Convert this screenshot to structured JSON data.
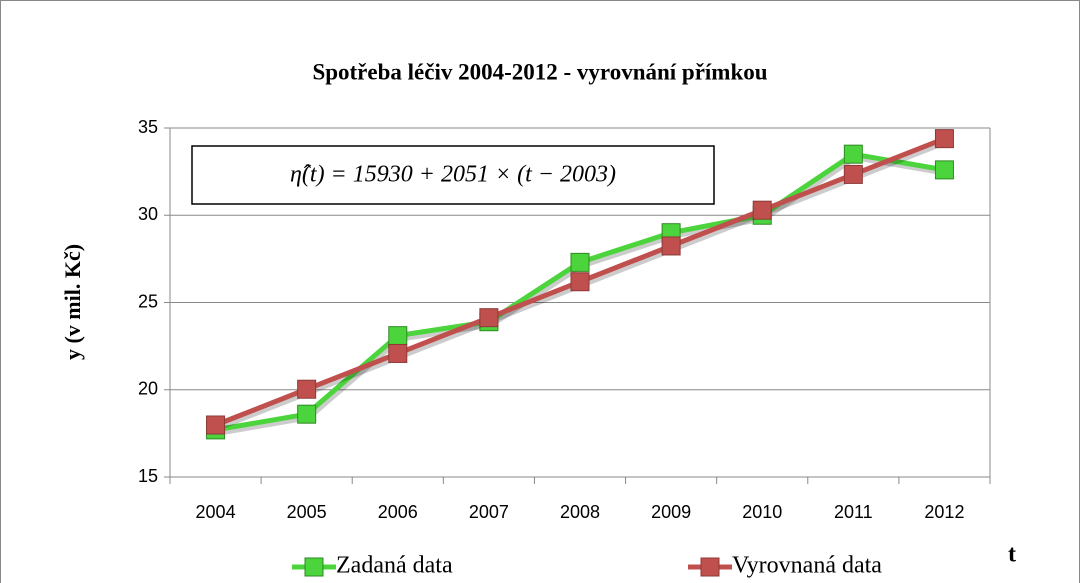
{
  "chart_data": {
    "type": "line",
    "title": "Spotřeba léčiv 2004-2012 - vyrovnání přímkou",
    "x_label": "t",
    "y_label": "y (v mil. Kč)",
    "annotation": "η̂(t) = 15930 + 2051 × (t − 2003)",
    "categories": [
      "2004",
      "2005",
      "2006",
      "2007",
      "2008",
      "2009",
      "2010",
      "2011",
      "2012"
    ],
    "series": [
      {
        "name": "Zadaná data",
        "color": "#4cd43c",
        "values": [
          17.7,
          18.6,
          23.1,
          23.9,
          27.3,
          29.0,
          30.0,
          33.5,
          32.6
        ]
      },
      {
        "name": "Vyrovnaná data",
        "color": "#c0504d",
        "values": [
          17.98,
          20.03,
          22.08,
          24.13,
          26.19,
          28.24,
          30.29,
          32.34,
          34.39
        ]
      }
    ],
    "ylim": [
      15,
      35
    ],
    "yticks": [
      15,
      20,
      25,
      30,
      35
    ],
    "grid": true,
    "legend": "bottom"
  }
}
